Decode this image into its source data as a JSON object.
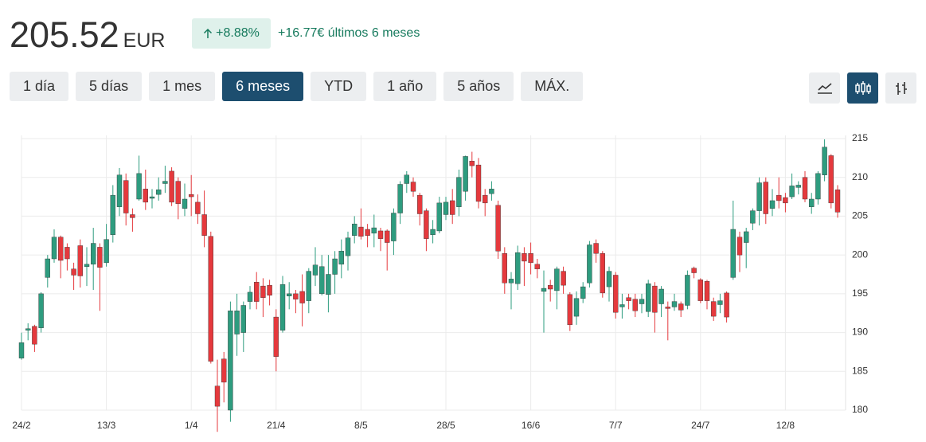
{
  "header": {
    "price": "205.52",
    "currency": "EUR",
    "change_pct": "+8.88%",
    "change_abs": "+16.77€ últimos 6 meses"
  },
  "ranges": {
    "buttons": [
      "1 día",
      "5 días",
      "1 mes",
      "6 meses",
      "YTD",
      "1 año",
      "5 años",
      "MÁX."
    ],
    "active": 3
  },
  "chart_data": {
    "type": "candlestick",
    "up_color": "#2e9c7f",
    "down_color": "#e5393d",
    "grid": true,
    "categories": [
      "24/2",
      null,
      null,
      null,
      null,
      null,
      null,
      null,
      null,
      null,
      null,
      null,
      null,
      "13/3",
      null,
      null,
      null,
      null,
      null,
      null,
      null,
      null,
      null,
      null,
      null,
      null,
      "1/4",
      null,
      null,
      null,
      null,
      null,
      null,
      null,
      null,
      null,
      null,
      null,
      null,
      "21/4",
      null,
      null,
      null,
      null,
      null,
      null,
      null,
      null,
      null,
      null,
      null,
      null,
      "8/5",
      null,
      null,
      null,
      null,
      null,
      null,
      null,
      null,
      null,
      null,
      null,
      null,
      "28/5",
      null,
      null,
      null,
      null,
      null,
      null,
      null,
      null,
      null,
      null,
      null,
      null,
      "16/6",
      null,
      null,
      null,
      null,
      null,
      null,
      null,
      null,
      null,
      null,
      null,
      null,
      "7/7",
      null,
      null,
      null,
      null,
      null,
      null,
      null,
      null,
      null,
      null,
      null,
      null,
      "24/7",
      null,
      null,
      null,
      null,
      null,
      null,
      null,
      null,
      null,
      null,
      null,
      null,
      "12/8",
      null,
      null,
      null,
      null,
      null,
      null,
      null,
      null
    ],
    "open": [
      186.7,
      190.3,
      190.8,
      190.6,
      197.1,
      199.5,
      202.3,
      201,
      198.2,
      201.2,
      198.5,
      198.8,
      201,
      199,
      202.6,
      206.2,
      209.6,
      205.2,
      207.2,
      208.5,
      207.3,
      207.8,
      209.2,
      210.8,
      209.5,
      206,
      207.8,
      206.8,
      205.2,
      202.4,
      183.1,
      186.6,
      180,
      189.8,
      190,
      194,
      196.5,
      196,
      196.1,
      192,
      190.3,
      194.7,
      195,
      195.3,
      194.1,
      197.4,
      195,
      194.9,
      197.5,
      198.8,
      199.9,
      202.5,
      203.6,
      203.3,
      202.8,
      203.1,
      203.1,
      201.8,
      205.4,
      209.2,
      209.4,
      207.7,
      205.7,
      202.6,
      203.1,
      205.2,
      207,
      206.2,
      208.2,
      212.1,
      211.6,
      207.7,
      207.9,
      206.4,
      200.2,
      196.4,
      196.3,
      200.2,
      200.2,
      198.8,
      195.3,
      196.1,
      195.4,
      197.9,
      194.9,
      192.1,
      194.4,
      196.4,
      201.5,
      200.2,
      195.9,
      197.4,
      193.3,
      194.5,
      194.3,
      193.7,
      192.7,
      196,
      193.7,
      193.3,
      193.3,
      193.7,
      193.5,
      198.3,
      196.8,
      196.6,
      194,
      193.6,
      195.1,
      197.1,
      202.3,
      201.6,
      204.1,
      205.7,
      209.4,
      206,
      207.7,
      207.4,
      207.5,
      208.7,
      210,
      206.2,
      207.2,
      210.3,
      212.8,
      208.4
    ],
    "high": [
      190,
      191.2,
      191,
      195.2,
      200,
      203.3,
      202.5,
      201.5,
      199,
      202,
      201,
      203.5,
      201.5,
      204,
      209,
      211.2,
      210.5,
      206,
      212.8,
      211,
      208.5,
      210,
      211.5,
      211.3,
      210,
      209.2,
      210.3,
      207.8,
      208.3,
      203,
      186.5,
      187.5,
      194,
      195,
      194,
      196,
      197.8,
      197,
      196.8,
      193,
      197.3,
      196.5,
      195.5,
      197.5,
      198.3,
      201,
      200,
      200,
      200.5,
      202,
      203,
      205,
      206,
      204,
      205.2,
      203.5,
      203.3,
      206,
      209.5,
      210.8,
      210,
      208,
      206,
      204.5,
      207.5,
      207.5,
      208.5,
      211,
      212.8,
      213.3,
      212.5,
      208.5,
      209.5,
      207,
      201,
      197.8,
      201.2,
      201,
      201.6,
      199.5,
      198,
      196.8,
      198.5,
      198.5,
      195.2,
      195.3,
      196.5,
      201.8,
      202,
      200.5,
      198.5,
      197.8,
      195,
      195,
      195,
      195,
      196.8,
      196.5,
      196,
      194,
      195,
      194,
      198,
      198.5,
      197,
      196.8,
      194.5,
      195,
      195.3,
      207,
      203,
      203.5,
      206,
      210,
      210,
      208.5,
      210,
      208,
      210.5,
      209.5,
      210.8,
      208,
      210.8,
      214.9,
      213,
      209
    ],
    "low": [
      186.5,
      189,
      187.5,
      190,
      195.8,
      199,
      197,
      198,
      195.5,
      195.8,
      196,
      195.5,
      192.8,
      198.5,
      201.6,
      205,
      203.8,
      203,
      207,
      205.8,
      206,
      207,
      208,
      206.3,
      204.6,
      205,
      205,
      204,
      201,
      186,
      177.2,
      181,
      178.5,
      187,
      187.5,
      193,
      193,
      192,
      193.5,
      185,
      190,
      193,
      192.5,
      190.8,
      192.5,
      196,
      194.8,
      192.6,
      195,
      197,
      198,
      201.5,
      202,
      201,
      201,
      200.5,
      198,
      200,
      204,
      208,
      207.5,
      203.8,
      200.5,
      201.5,
      202.8,
      204.5,
      204,
      205,
      207,
      210,
      206,
      205,
      207,
      199.5,
      195,
      193,
      195.5,
      196,
      197.5,
      197,
      190,
      194,
      193,
      195,
      190.2,
      191,
      193.8,
      195.8,
      199,
      194.5,
      194,
      191.8,
      191.8,
      193,
      192,
      192.5,
      192,
      190,
      192,
      189,
      192.8,
      192,
      193,
      197,
      193.8,
      193,
      191.5,
      192.5,
      191.3,
      196.8,
      197.8,
      198.3,
      203.2,
      203.8,
      204,
      205,
      206,
      205.5,
      207.2,
      207.8,
      206.8,
      205.3,
      206.5,
      209.5,
      206,
      204.8
    ],
    "close": [
      188.7,
      190.5,
      188.5,
      195,
      199.5,
      202.3,
      199.3,
      199.5,
      197.4,
      197.3,
      198.8,
      201.5,
      198.4,
      202,
      207.7,
      210.3,
      205.4,
      204.8,
      210.5,
      206.8,
      207.5,
      208.4,
      209.5,
      206.8,
      206.6,
      207.2,
      207.5,
      205.3,
      202.5,
      186.3,
      180.5,
      183.6,
      192.8,
      192.8,
      193.5,
      195.2,
      194,
      194.5,
      194.8,
      186.9,
      196.2,
      195,
      194.3,
      193.8,
      197.9,
      198.7,
      198.5,
      197.5,
      199.5,
      200.5,
      202.2,
      204,
      202.4,
      202.5,
      203.5,
      202.1,
      201.6,
      205.4,
      209.1,
      210.3,
      208.2,
      205.3,
      202.1,
      203.3,
      206.7,
      206.8,
      205.2,
      210,
      212.7,
      211.5,
      206.9,
      206.7,
      208.5,
      200.5,
      196.4,
      196.9,
      200.3,
      199.2,
      199,
      198.2,
      195.7,
      195.6,
      198.2,
      196.1,
      191,
      194.4,
      195.9,
      201.3,
      200.2,
      195.1,
      197.9,
      192.6,
      193.6,
      194.1,
      192.8,
      194.3,
      196.3,
      192.6,
      195.6,
      193.1,
      194,
      192.9,
      197.4,
      197.7,
      194.1,
      194.1,
      192.1,
      194.1,
      192,
      203.3,
      200,
      203,
      205.7,
      209.3,
      205.3,
      207,
      207,
      206.7,
      208.9,
      209,
      207.2,
      207.2,
      210.5,
      213.9,
      206.7,
      205.52
    ],
    "ylim": [
      180,
      215
    ],
    "yticks": [
      180,
      185,
      190,
      195,
      200,
      205,
      210,
      215
    ]
  }
}
